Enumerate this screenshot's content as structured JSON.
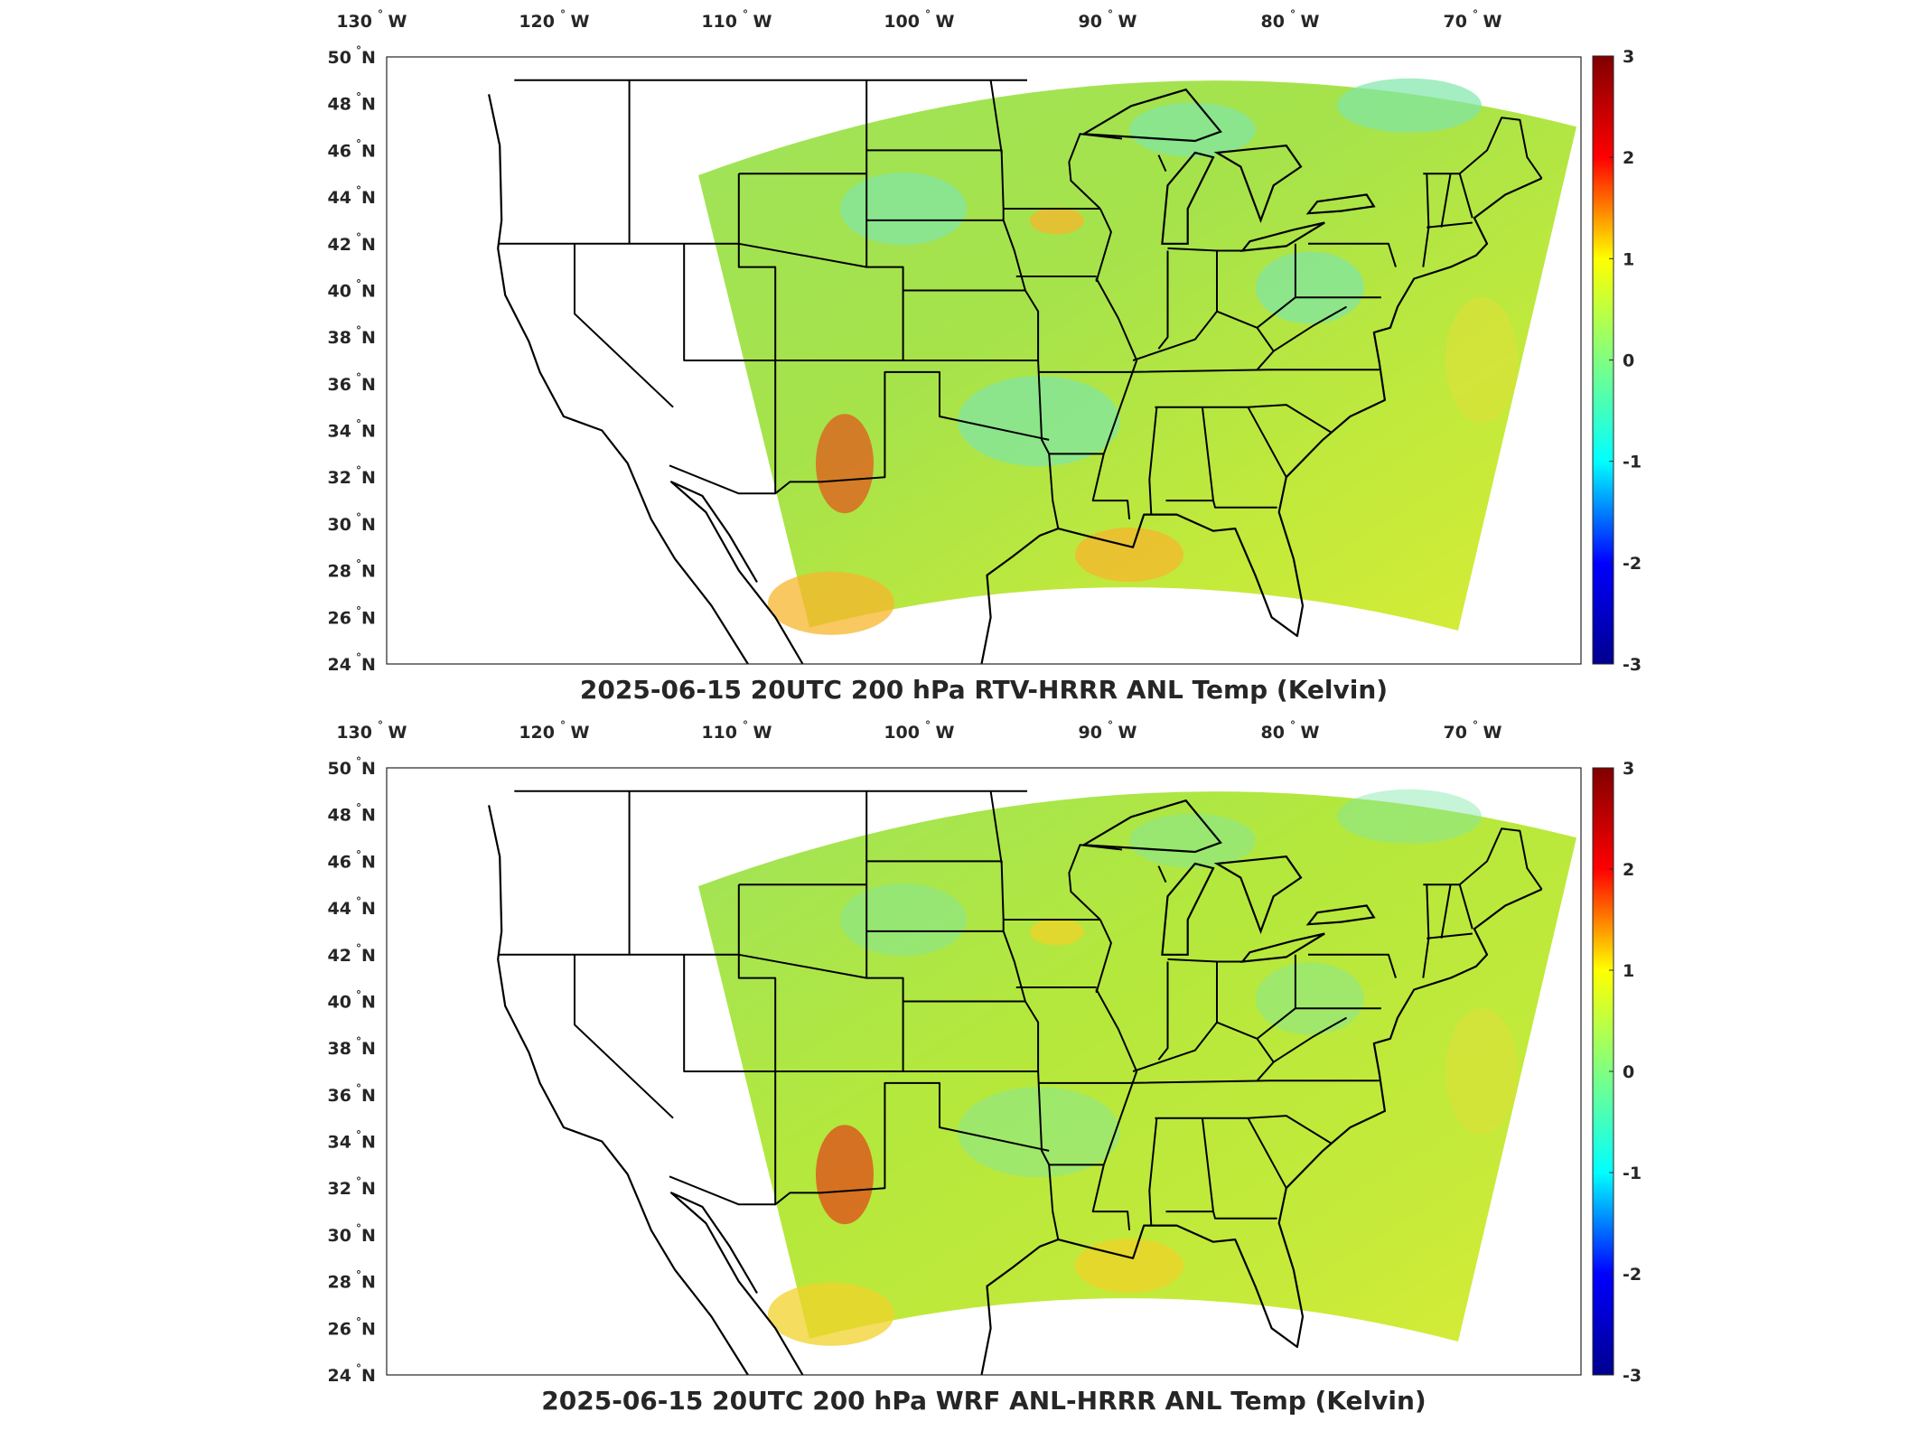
{
  "panels": [
    {
      "title": "2025-06-15 20UTC 200 hPa RTV-HRRR ANL Temp (Kelvin)",
      "lon_labels": [
        {
          "num": "130",
          "hem": "W",
          "lon": -130
        },
        {
          "num": "120",
          "hem": "W",
          "lon": -120
        },
        {
          "num": "110",
          "hem": "W",
          "lon": -110
        },
        {
          "num": "100",
          "hem": "W",
          "lon": -100
        },
        {
          "num": "90",
          "hem": "W",
          "lon": -90
        },
        {
          "num": "80",
          "hem": "W",
          "lon": -80
        },
        {
          "num": "70",
          "hem": "W",
          "lon": -70
        }
      ],
      "lat_labels": [
        {
          "num": "50",
          "hem": "N",
          "lat": 50
        },
        {
          "num": "48",
          "hem": "N",
          "lat": 48
        },
        {
          "num": "46",
          "hem": "N",
          "lat": 46
        },
        {
          "num": "44",
          "hem": "N",
          "lat": 44
        },
        {
          "num": "42",
          "hem": "N",
          "lat": 42
        },
        {
          "num": "40",
          "hem": "N",
          "lat": 40
        },
        {
          "num": "38",
          "hem": "N",
          "lat": 38
        },
        {
          "num": "36",
          "hem": "N",
          "lat": 36
        },
        {
          "num": "34",
          "hem": "N",
          "lat": 34
        },
        {
          "num": "32",
          "hem": "N",
          "lat": 32
        },
        {
          "num": "30",
          "hem": "N",
          "lat": 30
        },
        {
          "num": "28",
          "hem": "N",
          "lat": 28
        },
        {
          "num": "26",
          "hem": "N",
          "lat": 26
        },
        {
          "num": "24",
          "hem": "N",
          "lat": 24
        }
      ],
      "colorbar": {
        "range": [
          -3,
          3
        ],
        "ticks": [
          "3",
          "2",
          "1",
          "0",
          "-1",
          "-2",
          "-3"
        ],
        "colormap": [
          "#00008f",
          "#0000ff",
          "#00ffff",
          "#80ff80",
          "#ffff00",
          "#ff0000",
          "#800000"
        ]
      },
      "field": {
        "base_color": "#a6e34a",
        "hotspots": [
          "#f7b52c",
          "#e25a1c"
        ]
      }
    },
    {
      "title": "2025-06-15 20UTC 200 hPa WRF ANL-HRRR ANL Temp (Kelvin)",
      "lon_labels": [
        {
          "num": "130",
          "hem": "W",
          "lon": -130
        },
        {
          "num": "120",
          "hem": "W",
          "lon": -120
        },
        {
          "num": "110",
          "hem": "W",
          "lon": -110
        },
        {
          "num": "100",
          "hem": "W",
          "lon": -100
        },
        {
          "num": "90",
          "hem": "W",
          "lon": -90
        },
        {
          "num": "80",
          "hem": "W",
          "lon": -80
        },
        {
          "num": "70",
          "hem": "W",
          "lon": -70
        }
      ],
      "lat_labels": [
        {
          "num": "50",
          "hem": "N",
          "lat": 50
        },
        {
          "num": "48",
          "hem": "N",
          "lat": 48
        },
        {
          "num": "46",
          "hem": "N",
          "lat": 46
        },
        {
          "num": "44",
          "hem": "N",
          "lat": 44
        },
        {
          "num": "42",
          "hem": "N",
          "lat": 42
        },
        {
          "num": "40",
          "hem": "N",
          "lat": 40
        },
        {
          "num": "38",
          "hem": "N",
          "lat": 38
        },
        {
          "num": "36",
          "hem": "N",
          "lat": 36
        },
        {
          "num": "34",
          "hem": "N",
          "lat": 34
        },
        {
          "num": "32",
          "hem": "N",
          "lat": 32
        },
        {
          "num": "30",
          "hem": "N",
          "lat": 30
        },
        {
          "num": "28",
          "hem": "N",
          "lat": 28
        },
        {
          "num": "26",
          "hem": "N",
          "lat": 26
        },
        {
          "num": "24",
          "hem": "N",
          "lat": 24
        }
      ],
      "colorbar": {
        "range": [
          -3,
          3
        ],
        "ticks": [
          "3",
          "2",
          "1",
          "0",
          "-1",
          "-2",
          "-3"
        ],
        "colormap": [
          "#00008f",
          "#0000ff",
          "#00ffff",
          "#80ff80",
          "#ffff00",
          "#ff0000",
          "#800000"
        ]
      },
      "field": {
        "base_color": "#b4e83c",
        "hotspots": [
          "#f0d12a",
          "#e04a1a"
        ]
      }
    }
  ]
}
